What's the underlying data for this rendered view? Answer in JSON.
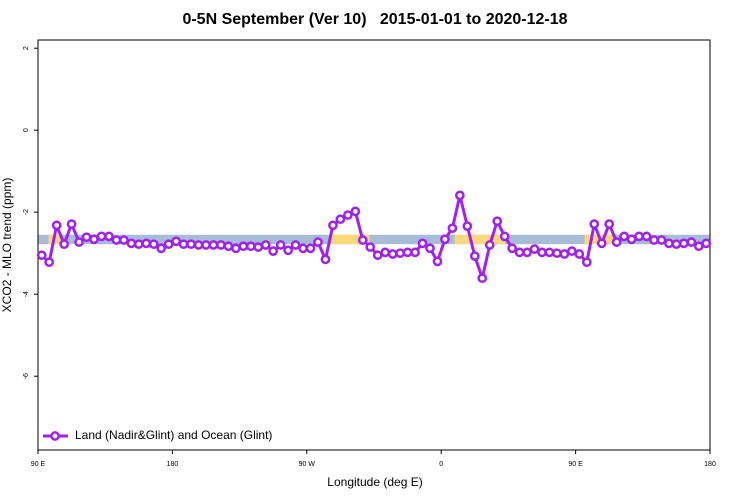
{
  "chart_data": {
    "type": "line",
    "title": "0-5N September (Ver 10)   2015-01-01 to 2020-12-18",
    "x_label": "Longitude (deg E)",
    "y_label": "XCO2 - MLO trend (ppm)",
    "xlim": [
      90,
      540
    ],
    "xticks": [
      {
        "value": 90,
        "label": "90 E"
      },
      {
        "value": 180,
        "label": "180"
      },
      {
        "value": 270,
        "label": "90 W"
      },
      {
        "value": 360,
        "label": "0"
      },
      {
        "value": 450,
        "label": "90 E"
      },
      {
        "value": 540,
        "label": "180"
      }
    ],
    "ylim": [
      -7.8,
      2.2
    ],
    "yticks": [
      2,
      0,
      -2,
      -4,
      -6
    ],
    "legend": "bottomleft",
    "band_ylim": [
      -2.78,
      -2.55
    ],
    "band_color": "#a7bcd7",
    "land_color": "#fbd97a",
    "land_ranges": [
      [
        97,
        106
      ],
      [
        286,
        312
      ],
      [
        369,
        403
      ],
      [
        456,
        476
      ]
    ],
    "x": [
      92.5,
      97.5,
      102.5,
      107.5,
      112.5,
      117.5,
      122.5,
      127.5,
      132.5,
      137.5,
      142.5,
      147.5,
      152.5,
      157.5,
      162.5,
      167.5,
      172.5,
      177.5,
      182.5,
      187.5,
      192.5,
      197.5,
      202.5,
      207.5,
      212.5,
      217.5,
      222.5,
      227.5,
      232.5,
      237.5,
      242.5,
      247.5,
      252.5,
      257.5,
      262.5,
      267.5,
      272.5,
      277.5,
      282.5,
      287.5,
      292.5,
      297.5,
      302.5,
      307.5,
      312.5,
      317.5,
      322.5,
      327.5,
      332.5,
      337.5,
      342.5,
      347.5,
      352.5,
      357.5,
      362.5,
      367.5,
      372.5,
      377.5,
      382.5,
      387.5,
      392.5,
      397.5,
      402.5,
      407.5,
      412.5,
      417.5,
      422.5,
      427.5,
      432.5,
      437.5,
      442.5,
      447.5,
      452.5,
      457.5,
      462.5,
      467.5,
      472.5,
      477.5,
      482.5,
      487.5,
      492.5,
      497.5,
      502.5,
      507.5,
      512.5,
      517.5,
      522.5,
      527.5,
      532.5,
      537.5
    ],
    "series": [
      {
        "name": "Land (Nadir&Glint) and Ocean (Glint)",
        "color": "#a020f0",
        "values": [
          -3.05,
          -3.22,
          -2.32,
          -2.78,
          -2.29,
          -2.73,
          -2.61,
          -2.66,
          -2.59,
          -2.59,
          -2.68,
          -2.68,
          -2.76,
          -2.78,
          -2.76,
          -2.78,
          -2.88,
          -2.78,
          -2.71,
          -2.78,
          -2.78,
          -2.8,
          -2.8,
          -2.8,
          -2.8,
          -2.83,
          -2.88,
          -2.83,
          -2.83,
          -2.85,
          -2.8,
          -2.95,
          -2.8,
          -2.93,
          -2.8,
          -2.88,
          -2.88,
          -2.73,
          -3.15,
          -2.32,
          -2.17,
          -2.07,
          -1.98,
          -2.68,
          -2.85,
          -3.05,
          -2.98,
          -3.02,
          -3.0,
          -2.98,
          -2.98,
          -2.76,
          -2.88,
          -3.2,
          -2.66,
          -2.39,
          -1.59,
          -2.34,
          -3.07,
          -3.61,
          -2.8,
          -2.22,
          -2.59,
          -2.88,
          -2.98,
          -2.98,
          -2.9,
          -2.98,
          -2.98,
          -3.0,
          -3.02,
          -2.95,
          -3.02,
          -3.22,
          -2.29,
          -2.76,
          -2.29,
          -2.73,
          -2.59,
          -2.66,
          -2.59,
          -2.59,
          -2.68,
          -2.68,
          -2.76,
          -2.78,
          -2.76,
          -2.73,
          -2.83,
          -2.76
        ]
      }
    ]
  }
}
